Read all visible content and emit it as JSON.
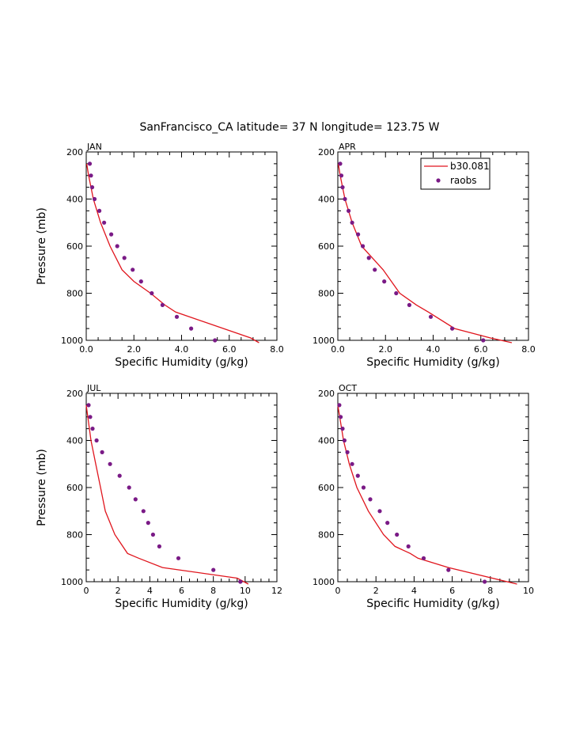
{
  "title": "SanFrancisco_CA  latitude= 37 N longitude= 123.75 W",
  "colors": {
    "model": "#e0151d",
    "obs": "#7a1a86",
    "axis": "#000000"
  },
  "legend": {
    "placement": "top-right of APR panel",
    "model_label": "b30.081",
    "obs_label": "raobs"
  },
  "chart_data": [
    {
      "type": "line",
      "panel_label": "JAN",
      "xlabel": "Specific Humidity (g/kg)",
      "ylabel": "Pressure (mb)",
      "xlim": [
        0,
        8
      ],
      "ylim": [
        1000,
        200
      ],
      "y_inverted": true,
      "xticks": [
        "0.0",
        "2.0",
        "4.0",
        "6.0",
        "8.0"
      ],
      "yticks": [
        "200",
        "400",
        "600",
        "800",
        "1000"
      ],
      "xtick_values": [
        0,
        2,
        4,
        6,
        8
      ],
      "ytick_values": [
        200,
        400,
        600,
        800,
        1000
      ],
      "series": [
        {
          "name": "b30.081",
          "style": "line",
          "x": [
            0.02,
            0.1,
            0.3,
            0.6,
            1.0,
            1.5,
            2.0,
            2.7,
            3.3,
            3.75,
            6.9,
            7.25
          ],
          "y": [
            250,
            300,
            400,
            500,
            600,
            700,
            750,
            800,
            850,
            880,
            990,
            1010
          ]
        },
        {
          "name": "raobs",
          "style": "points",
          "x": [
            0.15,
            0.2,
            0.25,
            0.35,
            0.55,
            0.75,
            1.05,
            1.3,
            1.6,
            1.95,
            2.3,
            2.75,
            3.2,
            3.8,
            4.4,
            5.4
          ],
          "y": [
            250,
            300,
            350,
            400,
            450,
            500,
            550,
            600,
            650,
            700,
            750,
            800,
            850,
            900,
            950,
            1000
          ]
        }
      ]
    },
    {
      "type": "line",
      "panel_label": "APR",
      "xlabel": "Specific Humidity (g/kg)",
      "ylabel": "",
      "xlim": [
        0,
        8
      ],
      "ylim": [
        1000,
        200
      ],
      "y_inverted": true,
      "xticks": [
        "0.0",
        "2.0",
        "4.0",
        "6.0",
        "8.0"
      ],
      "yticks": [
        "200",
        "400",
        "600",
        "800",
        "1000"
      ],
      "xtick_values": [
        0,
        2,
        4,
        6,
        8
      ],
      "ytick_values": [
        200,
        400,
        600,
        800,
        1000
      ],
      "series": [
        {
          "name": "b30.081",
          "style": "line",
          "x": [
            0.02,
            0.1,
            0.3,
            0.6,
            1.0,
            1.45,
            1.9,
            2.6,
            3.3,
            3.8,
            4.9,
            6.4,
            7.3
          ],
          "y": [
            250,
            300,
            400,
            500,
            600,
            650,
            700,
            800,
            850,
            880,
            950,
            990,
            1010
          ]
        },
        {
          "name": "raobs",
          "style": "points",
          "x": [
            0.1,
            0.15,
            0.2,
            0.3,
            0.45,
            0.6,
            0.85,
            1.05,
            1.3,
            1.55,
            1.95,
            2.45,
            3.0,
            3.9,
            4.8,
            6.1
          ],
          "y": [
            250,
            300,
            350,
            400,
            450,
            500,
            550,
            600,
            650,
            700,
            750,
            800,
            850,
            900,
            950,
            1000
          ]
        }
      ]
    },
    {
      "type": "line",
      "panel_label": "JUL",
      "xlabel": "Specific Humidity (g/kg)",
      "ylabel": "Pressure (mb)",
      "xlim": [
        0,
        12
      ],
      "ylim": [
        1000,
        200
      ],
      "y_inverted": true,
      "xticks": [
        "0",
        "2",
        "4",
        "6",
        "8",
        "10",
        "12"
      ],
      "yticks": [
        "200",
        "400",
        "600",
        "800",
        "1000"
      ],
      "xtick_values": [
        0,
        2,
        4,
        6,
        8,
        10,
        12
      ],
      "ytick_values": [
        200,
        400,
        600,
        800,
        1000
      ],
      "series": [
        {
          "name": "b30.081",
          "style": "line",
          "x": [
            0.0,
            0.1,
            0.3,
            0.6,
            0.9,
            1.2,
            1.8,
            2.6,
            3.3,
            4.8,
            9.5,
            10.2
          ],
          "y": [
            250,
            300,
            400,
            500,
            600,
            700,
            800,
            880,
            900,
            940,
            985,
            1010
          ]
        },
        {
          "name": "raobs",
          "style": "points",
          "x": [
            0.15,
            0.25,
            0.4,
            0.65,
            1.0,
            1.5,
            2.1,
            2.7,
            3.1,
            3.6,
            3.9,
            4.2,
            4.6,
            5.8,
            8.0,
            9.7
          ],
          "y": [
            250,
            300,
            350,
            400,
            450,
            500,
            550,
            600,
            650,
            700,
            750,
            800,
            850,
            900,
            950,
            1000
          ]
        }
      ]
    },
    {
      "type": "line",
      "panel_label": "OCT",
      "xlabel": "Specific Humidity (g/kg)",
      "ylabel": "",
      "xlim": [
        0,
        10
      ],
      "ylim": [
        1000,
        200
      ],
      "y_inverted": true,
      "xticks": [
        "0",
        "2",
        "4",
        "6",
        "8",
        "10"
      ],
      "yticks": [
        "200",
        "400",
        "600",
        "800",
        "1000"
      ],
      "xtick_values": [
        0,
        2,
        4,
        6,
        8,
        10
      ],
      "ytick_values": [
        200,
        400,
        600,
        800,
        1000
      ],
      "series": [
        {
          "name": "b30.081",
          "style": "line",
          "x": [
            0.0,
            0.1,
            0.3,
            0.6,
            1.0,
            1.6,
            2.4,
            3.0,
            3.8,
            4.2,
            5.8,
            9.4
          ],
          "y": [
            250,
            300,
            400,
            500,
            600,
            700,
            800,
            850,
            880,
            900,
            940,
            1010
          ]
        },
        {
          "name": "raobs",
          "style": "points",
          "x": [
            0.08,
            0.15,
            0.25,
            0.35,
            0.5,
            0.75,
            1.05,
            1.35,
            1.7,
            2.2,
            2.6,
            3.1,
            3.7,
            4.5,
            5.8,
            7.7
          ],
          "y": [
            250,
            300,
            350,
            400,
            450,
            500,
            550,
            600,
            650,
            700,
            750,
            800,
            850,
            900,
            950,
            1000
          ]
        }
      ]
    }
  ]
}
